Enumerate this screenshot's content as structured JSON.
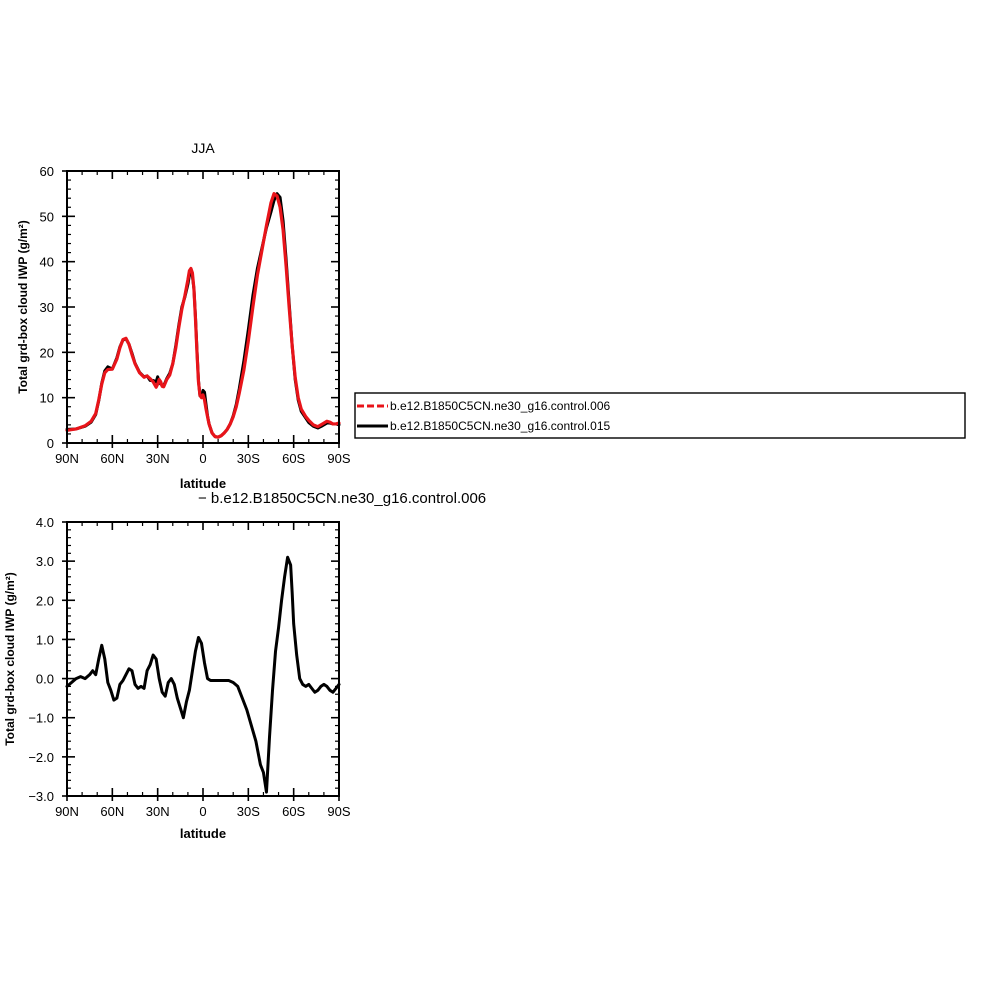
{
  "chart_data": [
    {
      "type": "line",
      "title": "JJA",
      "xlabel": "latitude",
      "ylabel": "Total grd-box cloud IWP (g/m²)",
      "xlim": [
        90,
        -90
      ],
      "ylim": [
        0,
        60
      ],
      "x_ticks": [
        90,
        60,
        30,
        0,
        -30,
        -60,
        -90
      ],
      "x_tick_labels": [
        "90N",
        "60N",
        "30N",
        "0",
        "30S",
        "60S",
        "90S"
      ],
      "y_ticks": [
        0,
        10,
        20,
        30,
        40,
        50,
        60
      ],
      "y_tick_labels": [
        "0",
        "10",
        "20",
        "30",
        "40",
        "50",
        "60"
      ],
      "legend": {
        "placement": "right",
        "entries": [
          {
            "label": "b.e12.B1850C5CN.ne30_g16.control.006",
            "color": "#e8141a",
            "style": "dashed"
          },
          {
            "label": "b.e12.B1850C5CN.ne30_g16.control.015",
            "color": "#000000",
            "style": "solid"
          }
        ]
      },
      "series": [
        {
          "name": "b.e12.B1850C5CN.ne30_g16.control.006",
          "color": "#e8141a",
          "x": [
            90,
            84,
            78,
            74,
            71,
            69,
            67,
            65,
            63,
            60,
            57,
            55,
            53,
            51,
            49,
            47,
            45,
            42,
            39,
            37,
            35,
            33,
            31,
            30,
            29,
            28,
            27,
            26,
            25,
            24,
            22,
            20,
            18,
            16,
            14,
            12,
            10,
            9,
            8,
            7,
            6,
            5,
            4,
            3,
            2,
            1,
            0,
            -1,
            -2,
            -3,
            -4,
            -6,
            -8,
            -10,
            -12,
            -14,
            -16,
            -18,
            -20,
            -22,
            -24,
            -27,
            -30,
            -33,
            -36,
            -39,
            -42,
            -45,
            -47,
            -49,
            -51,
            -53,
            -55,
            -57,
            -59,
            -61,
            -63,
            -65,
            -68,
            -70,
            -73,
            -76,
            -79,
            -82,
            -84,
            -86,
            -88,
            -90
          ],
          "y": [
            2.8,
            3.1,
            3.8,
            4.8,
            6.5,
            9.5,
            13.0,
            15.5,
            16.2,
            16.3,
            18.5,
            21.0,
            22.8,
            23.1,
            21.8,
            19.5,
            17.5,
            15.5,
            14.5,
            14.8,
            14.2,
            13.5,
            12.3,
            13.0,
            14.0,
            13.5,
            12.5,
            12.4,
            13.2,
            14.0,
            15.0,
            17.5,
            21.0,
            25.5,
            29.5,
            32.5,
            36.0,
            38.0,
            38.5,
            37.5,
            34.0,
            27.5,
            20.0,
            13.5,
            10.5,
            10.0,
            10.6,
            9.5,
            7.5,
            5.8,
            4.2,
            2.2,
            1.4,
            1.3,
            1.6,
            2.2,
            3.0,
            4.2,
            5.8,
            8.0,
            11.0,
            16.0,
            22.5,
            30.0,
            37.0,
            42.5,
            48.0,
            53.0,
            55.0,
            54.5,
            52.0,
            47.0,
            39.0,
            30.0,
            21.5,
            14.5,
            10.0,
            7.5,
            5.8,
            5.0,
            4.0,
            3.6,
            4.2,
            4.8,
            4.6,
            4.2,
            4.2,
            4.4
          ]
        },
        {
          "name": "b.e12.B1850C5CN.ne30_g16.control.015",
          "color": "#000000",
          "x": [
            90,
            84,
            78,
            74,
            71,
            69,
            67,
            65,
            63,
            60,
            57,
            55,
            53,
            51,
            49,
            47,
            45,
            42,
            39,
            37,
            35,
            33,
            31,
            30,
            29,
            28,
            27,
            26,
            25,
            24,
            22,
            20,
            18,
            16,
            14,
            12,
            10,
            9,
            8,
            7,
            6,
            5,
            4,
            3,
            2,
            1,
            0,
            -1,
            -2,
            -3,
            -4,
            -6,
            -8,
            -10,
            -12,
            -14,
            -16,
            -18,
            -20,
            -22,
            -24,
            -27,
            -30,
            -33,
            -36,
            -39,
            -42,
            -45,
            -47,
            -49,
            -51,
            -53,
            -55,
            -57,
            -59,
            -61,
            -63,
            -65,
            -68,
            -70,
            -73,
            -76,
            -79,
            -82,
            -84,
            -86,
            -88,
            -90
          ],
          "y": [
            3.0,
            3.1,
            3.7,
            4.6,
            6.3,
            9.3,
            13.2,
            15.9,
            16.8,
            16.3,
            18.8,
            21.2,
            22.7,
            23.0,
            21.8,
            19.8,
            17.6,
            15.6,
            14.6,
            14.8,
            13.8,
            13.8,
            13.5,
            14.6,
            13.4,
            13.0,
            12.8,
            12.7,
            13.4,
            14.2,
            15.4,
            17.5,
            21.5,
            26.0,
            30.0,
            32.2,
            35.0,
            37.0,
            37.6,
            36.8,
            34.0,
            28.0,
            20.5,
            13.8,
            10.4,
            10.2,
            11.6,
            11.2,
            8.5,
            6.0,
            4.2,
            2.2,
            1.4,
            1.3,
            1.6,
            2.2,
            3.0,
            4.2,
            6.0,
            8.5,
            12.0,
            18.0,
            25.0,
            32.5,
            38.5,
            43.0,
            47.5,
            51.0,
            53.5,
            55.0,
            54.2,
            49.0,
            40.5,
            31.0,
            21.5,
            14.0,
            9.5,
            7.0,
            5.5,
            4.5,
            3.7,
            3.3,
            3.8,
            4.4,
            4.4,
            4.2,
            4.2,
            4.0
          ]
        }
      ]
    },
    {
      "type": "line",
      "title": "− b.e12.B1850C5CN.ne30_g16.control.006",
      "xlabel": "latitude",
      "ylabel": "Total grd-box cloud IWP (g/m²)",
      "xlim": [
        90,
        -90
      ],
      "ylim": [
        -3.0,
        4.0
      ],
      "x_ticks": [
        90,
        60,
        30,
        0,
        -30,
        -60,
        -90
      ],
      "x_tick_labels": [
        "90N",
        "60N",
        "30N",
        "0",
        "30S",
        "60S",
        "90S"
      ],
      "y_ticks": [
        4.0,
        3.0,
        2.0,
        1.0,
        0.0,
        -1.0,
        -2.0,
        -3.0
      ],
      "y_tick_labels": [
        "4.0",
        "3.0",
        "2.0",
        "1.0",
        "0.0",
        "−1.0",
        "−2.0",
        "−3.0"
      ],
      "series": [
        {
          "color": "#000000",
          "x": [
            90,
            87,
            84,
            81,
            78,
            75,
            73,
            71,
            69,
            67,
            65,
            63,
            61,
            59,
            57,
            55,
            53,
            51,
            49,
            47,
            45,
            43,
            41,
            39,
            37,
            35,
            33,
            31,
            29,
            27,
            25,
            23,
            21,
            19,
            17,
            15,
            13,
            11,
            9,
            7,
            5,
            3,
            1,
            -1,
            -3,
            -5,
            -8,
            -11,
            -14,
            -17,
            -20,
            -23,
            -26,
            -29,
            -32,
            -35,
            -38,
            -40,
            -42,
            -44,
            -46,
            -48,
            -50,
            -52,
            -54,
            -56,
            -58,
            -59,
            -60,
            -62,
            -64,
            -66,
            -68,
            -70,
            -72,
            -74,
            -76,
            -78,
            -80,
            -82,
            -84,
            -86,
            -88,
            -90
          ],
          "y": [
            -0.2,
            -0.1,
            0.0,
            0.05,
            0.0,
            0.1,
            0.2,
            0.1,
            0.5,
            0.85,
            0.5,
            -0.1,
            -0.3,
            -0.55,
            -0.5,
            -0.15,
            -0.05,
            0.1,
            0.25,
            0.2,
            -0.15,
            -0.25,
            -0.2,
            -0.25,
            0.2,
            0.35,
            0.6,
            0.5,
            0.0,
            -0.35,
            -0.45,
            -0.1,
            0.0,
            -0.15,
            -0.5,
            -0.75,
            -1.0,
            -0.6,
            -0.3,
            0.2,
            0.7,
            1.05,
            0.9,
            0.4,
            0.0,
            -0.05,
            -0.05,
            -0.05,
            -0.05,
            -0.05,
            -0.1,
            -0.2,
            -0.5,
            -0.8,
            -1.2,
            -1.6,
            -2.2,
            -2.4,
            -2.9,
            -1.5,
            -0.3,
            0.7,
            1.3,
            2.0,
            2.6,
            3.1,
            2.9,
            2.2,
            1.4,
            0.6,
            0.0,
            -0.15,
            -0.2,
            -0.15,
            -0.25,
            -0.35,
            -0.3,
            -0.2,
            -0.15,
            -0.2,
            -0.3,
            -0.35,
            -0.25,
            -0.15
          ]
        }
      ]
    }
  ]
}
